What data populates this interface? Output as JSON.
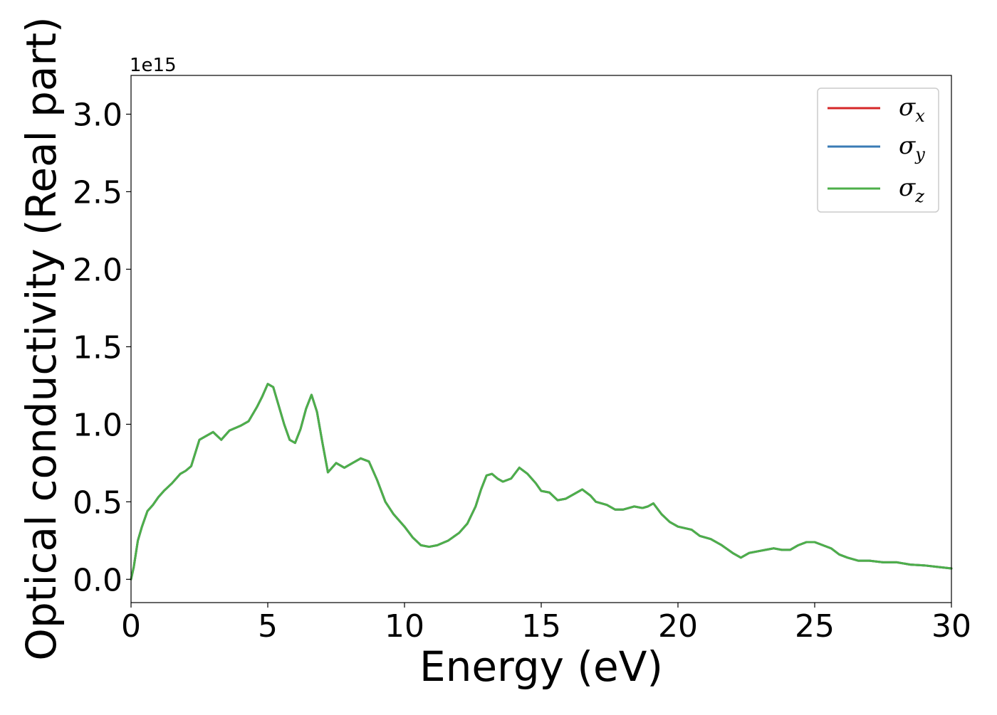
{
  "chart_data": {
    "type": "line",
    "xlabel": "Energy (eV)",
    "ylabel": "Optical conductivity (Real part)",
    "y_offset_text": "1e15",
    "y_scale": 1000000000000000.0,
    "xlim": [
      0,
      30
    ],
    "ylim": [
      -0.15,
      3.25
    ],
    "xticks": [
      0,
      5,
      10,
      15,
      20,
      25,
      30
    ],
    "xtick_labels": [
      "0",
      "5",
      "10",
      "15",
      "20",
      "25",
      "30"
    ],
    "yticks": [
      0.0,
      0.5,
      1.0,
      1.5,
      2.0,
      2.5,
      3.0
    ],
    "ytick_labels": [
      "0.0",
      "0.5",
      "1.0",
      "1.5",
      "2.0",
      "2.5",
      "3.0"
    ],
    "grid": false,
    "legend_position": "top-right",
    "x": [
      0,
      0.1,
      0.25,
      0.4,
      0.6,
      0.8,
      1.0,
      1.2,
      1.5,
      1.8,
      2.0,
      2.2,
      2.5,
      2.7,
      3.0,
      3.3,
      3.6,
      4.0,
      4.3,
      4.6,
      4.8,
      5.0,
      5.2,
      5.4,
      5.6,
      5.8,
      6.0,
      6.2,
      6.4,
      6.6,
      6.8,
      7.0,
      7.2,
      7.5,
      7.8,
      8.1,
      8.4,
      8.7,
      9.0,
      9.3,
      9.6,
      10.0,
      10.3,
      10.6,
      10.9,
      11.2,
      11.6,
      12.0,
      12.3,
      12.6,
      12.8,
      13.0,
      13.2,
      13.4,
      13.6,
      13.9,
      14.2,
      14.5,
      14.8,
      15.0,
      15.3,
      15.6,
      15.9,
      16.2,
      16.5,
      16.8,
      17.0,
      17.4,
      17.7,
      18.0,
      18.4,
      18.7,
      18.9,
      19.1,
      19.4,
      19.7,
      20.0,
      20.5,
      20.8,
      21.2,
      21.6,
      22.0,
      22.3,
      22.6,
      22.9,
      23.2,
      23.5,
      23.8,
      24.1,
      24.4,
      24.7,
      25.0,
      25.3,
      25.6,
      25.9,
      26.2,
      26.6,
      27.0,
      27.5,
      28.0,
      28.5,
      29.0,
      29.5,
      30.0
    ],
    "series": [
      {
        "name": "σx",
        "sub": "x",
        "color": "#d62728",
        "values": [
          0.0,
          0.08,
          0.25,
          0.34,
          0.44,
          0.48,
          0.53,
          0.57,
          0.62,
          0.68,
          0.7,
          0.73,
          0.9,
          0.92,
          0.95,
          0.9,
          0.96,
          0.99,
          1.02,
          1.11,
          1.18,
          1.26,
          1.24,
          1.12,
          1.0,
          0.9,
          0.88,
          0.97,
          1.1,
          1.19,
          1.08,
          0.88,
          0.69,
          0.75,
          0.72,
          0.75,
          0.78,
          0.76,
          0.64,
          0.5,
          0.42,
          0.34,
          0.27,
          0.22,
          0.21,
          0.22,
          0.25,
          0.3,
          0.36,
          0.47,
          0.58,
          0.67,
          0.68,
          0.65,
          0.63,
          0.65,
          0.72,
          0.68,
          0.62,
          0.57,
          0.56,
          0.51,
          0.52,
          0.55,
          0.58,
          0.54,
          0.5,
          0.48,
          0.45,
          0.45,
          0.47,
          0.46,
          0.47,
          0.49,
          0.42,
          0.37,
          0.34,
          0.32,
          0.28,
          0.26,
          0.22,
          0.17,
          0.14,
          0.17,
          0.18,
          0.19,
          0.2,
          0.19,
          0.19,
          0.22,
          0.24,
          0.24,
          0.22,
          0.2,
          0.16,
          0.14,
          0.12,
          0.12,
          0.11,
          0.11,
          0.095,
          0.09,
          0.08,
          0.07
        ]
      },
      {
        "name": "σy",
        "sub": "y",
        "color": "#3a7bb5",
        "values": [
          0.0,
          0.08,
          0.25,
          0.34,
          0.44,
          0.48,
          0.53,
          0.57,
          0.62,
          0.68,
          0.7,
          0.73,
          0.9,
          0.92,
          0.95,
          0.9,
          0.96,
          0.99,
          1.02,
          1.11,
          1.18,
          1.26,
          1.24,
          1.12,
          1.0,
          0.9,
          0.88,
          0.97,
          1.1,
          1.19,
          1.08,
          0.88,
          0.69,
          0.75,
          0.72,
          0.75,
          0.78,
          0.76,
          0.64,
          0.5,
          0.42,
          0.34,
          0.27,
          0.22,
          0.21,
          0.22,
          0.25,
          0.3,
          0.36,
          0.47,
          0.58,
          0.67,
          0.68,
          0.65,
          0.63,
          0.65,
          0.72,
          0.68,
          0.62,
          0.57,
          0.56,
          0.51,
          0.52,
          0.55,
          0.58,
          0.54,
          0.5,
          0.48,
          0.45,
          0.45,
          0.47,
          0.46,
          0.47,
          0.49,
          0.42,
          0.37,
          0.34,
          0.32,
          0.28,
          0.26,
          0.22,
          0.17,
          0.14,
          0.17,
          0.18,
          0.19,
          0.2,
          0.19,
          0.19,
          0.22,
          0.24,
          0.24,
          0.22,
          0.2,
          0.16,
          0.14,
          0.12,
          0.12,
          0.11,
          0.11,
          0.095,
          0.09,
          0.08,
          0.07
        ]
      },
      {
        "name": "σz",
        "sub": "z",
        "color": "#4daf4a",
        "values": [
          0.0,
          0.08,
          0.25,
          0.34,
          0.44,
          0.48,
          0.53,
          0.57,
          0.62,
          0.68,
          0.7,
          0.73,
          0.9,
          0.92,
          0.95,
          0.9,
          0.96,
          0.99,
          1.02,
          1.11,
          1.18,
          1.26,
          1.24,
          1.12,
          1.0,
          0.9,
          0.88,
          0.97,
          1.1,
          1.19,
          1.08,
          0.88,
          0.69,
          0.75,
          0.72,
          0.75,
          0.78,
          0.76,
          0.64,
          0.5,
          0.42,
          0.34,
          0.27,
          0.22,
          0.21,
          0.22,
          0.25,
          0.3,
          0.36,
          0.47,
          0.58,
          0.67,
          0.68,
          0.65,
          0.63,
          0.65,
          0.72,
          0.68,
          0.62,
          0.57,
          0.56,
          0.51,
          0.52,
          0.55,
          0.58,
          0.54,
          0.5,
          0.48,
          0.45,
          0.45,
          0.47,
          0.46,
          0.47,
          0.49,
          0.42,
          0.37,
          0.34,
          0.32,
          0.28,
          0.26,
          0.22,
          0.17,
          0.14,
          0.17,
          0.18,
          0.19,
          0.2,
          0.19,
          0.19,
          0.22,
          0.24,
          0.24,
          0.22,
          0.2,
          0.16,
          0.14,
          0.12,
          0.12,
          0.11,
          0.11,
          0.095,
          0.09,
          0.08,
          0.07
        ]
      }
    ]
  }
}
